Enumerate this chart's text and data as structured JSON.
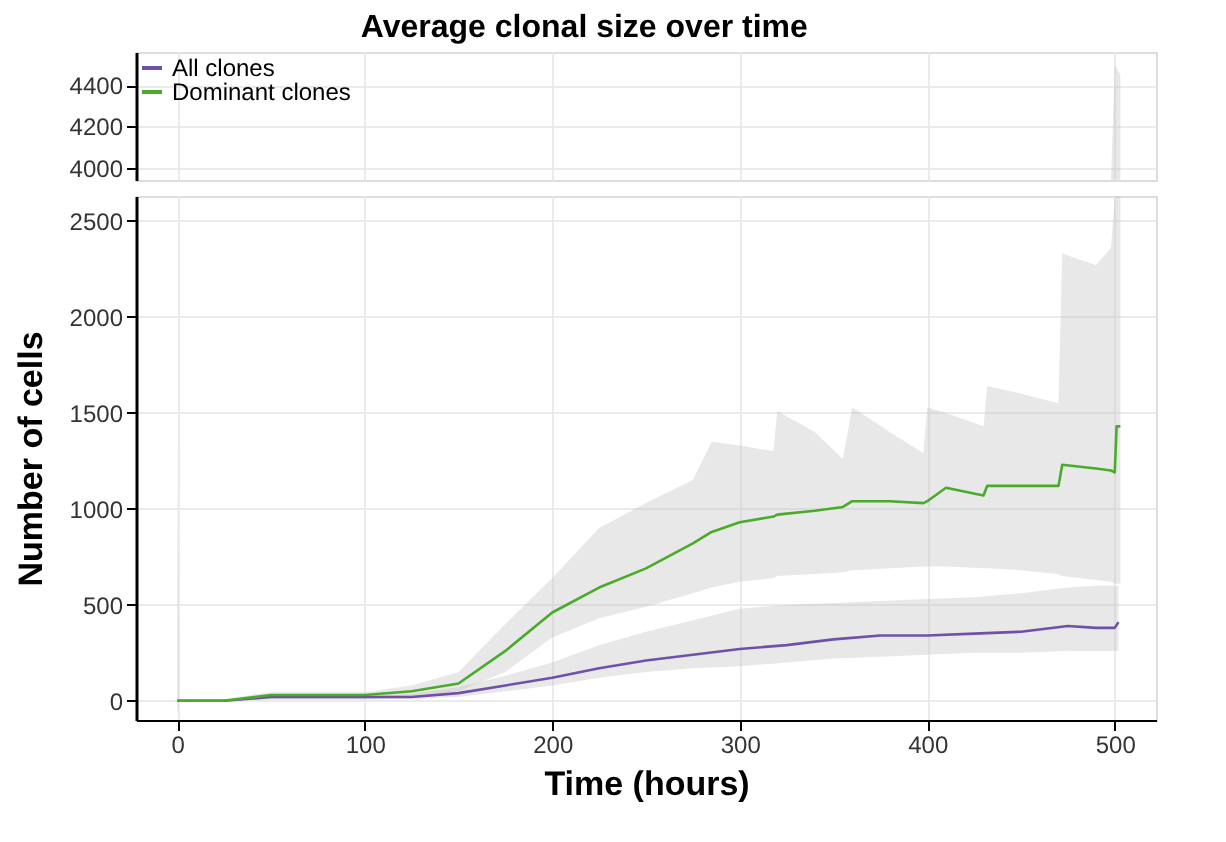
{
  "chart_data": [
    {
      "type": "line",
      "title": "Average clonal size over time",
      "xlim": [
        -22,
        522
      ],
      "ylim": [
        3940,
        4560
      ],
      "yticks": [
        4000,
        4200,
        4400
      ],
      "tick_labels": "y",
      "grid": true,
      "legend": "top left",
      "series": [
        {
          "name": "All clones",
          "color": "#7050a8"
        },
        {
          "name": "Dominant clones",
          "color": "#4aab2a",
          "x": [
            498,
            500,
            503
          ],
          "values": [
            null,
            null,
            null
          ],
          "lower": [
            3940,
            3940,
            3940
          ],
          "upper": [
            3940,
            4500,
            4450
          ]
        }
      ]
    },
    {
      "type": "line",
      "xlabel": "Time (hours)",
      "ylabel": "Number of cells",
      "xlim": [
        -22,
        522
      ],
      "ylim": [
        -100,
        2630
      ],
      "xticks": [
        0,
        100,
        200,
        300,
        400,
        500
      ],
      "yticks": [
        0,
        500,
        1000,
        1500,
        2000,
        2500
      ],
      "grid": true,
      "series": [
        {
          "color": "#7050a8",
          "x": [
            0,
            25,
            50,
            75,
            100,
            125,
            150,
            175,
            200,
            225,
            250,
            275,
            300,
            325,
            350,
            375,
            400,
            425,
            450,
            475,
            490,
            500,
            502
          ],
          "values": [
            0,
            0,
            20,
            20,
            20,
            20,
            40,
            80,
            120,
            170,
            210,
            240,
            270,
            290,
            320,
            340,
            340,
            350,
            360,
            390,
            380,
            380,
            410
          ],
          "lower": [
            0,
            0,
            5,
            5,
            5,
            10,
            20,
            50,
            80,
            120,
            150,
            170,
            180,
            200,
            220,
            230,
            240,
            250,
            250,
            260,
            260,
            260,
            260
          ],
          "upper": [
            0,
            5,
            25,
            25,
            25,
            35,
            70,
            130,
            200,
            290,
            360,
            420,
            480,
            500,
            510,
            520,
            530,
            540,
            560,
            590,
            600,
            600,
            600
          ]
        },
        {
          "color": "#4aab2a",
          "x": [
            0,
            1,
            25,
            50,
            75,
            100,
            125,
            150,
            175,
            200,
            225,
            250,
            275,
            285,
            300,
            318,
            320,
            340,
            355,
            360,
            380,
            398,
            400,
            410,
            430,
            432,
            450,
            470,
            472,
            490,
            498,
            500,
            501,
            503
          ],
          "values": [
            0,
            0,
            0,
            30,
            30,
            30,
            50,
            90,
            260,
            460,
            590,
            690,
            820,
            880,
            930,
            960,
            970,
            990,
            1010,
            1040,
            1040,
            1030,
            1040,
            1110,
            1070,
            1120,
            1120,
            1120,
            1230,
            1210,
            1200,
            1190,
            1430,
            1430
          ],
          "lower": [
            -80,
            0,
            0,
            10,
            10,
            10,
            20,
            50,
            150,
            330,
            430,
            490,
            560,
            590,
            620,
            640,
            650,
            660,
            670,
            680,
            690,
            700,
            700,
            700,
            690,
            690,
            680,
            660,
            650,
            630,
            620,
            610,
            610,
            610
          ],
          "upper": [
            1300,
            10,
            10,
            45,
            45,
            45,
            80,
            150,
            400,
            640,
            900,
            1030,
            1150,
            1350,
            1330,
            1300,
            1510,
            1400,
            1260,
            1530,
            1400,
            1290,
            1530,
            1500,
            1430,
            1640,
            1600,
            1550,
            2330,
            2270,
            2360,
            2630,
            2630,
            2630
          ]
        }
      ]
    }
  ]
}
